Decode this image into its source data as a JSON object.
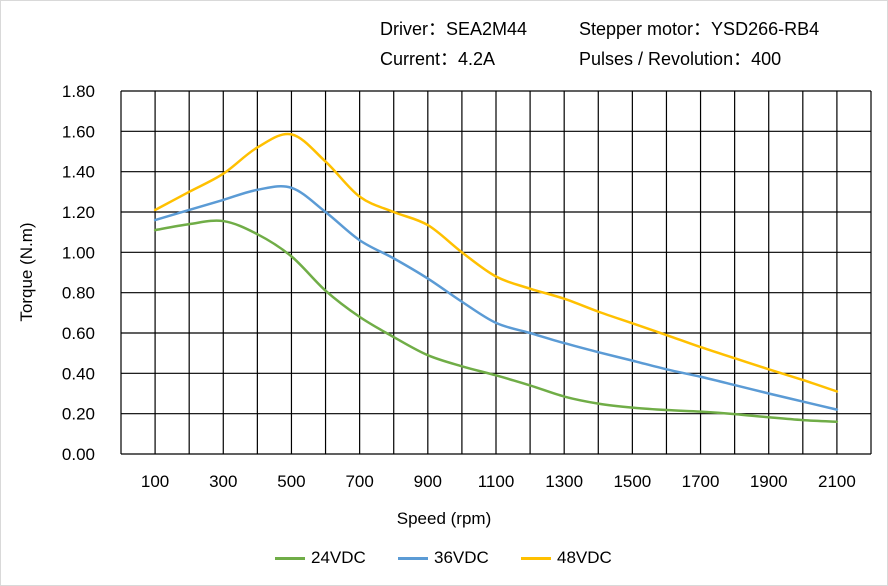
{
  "header": {
    "driver": "Driver：SEA2M44",
    "motor": "Stepper motor：YSD266-RB4",
    "current": "Current：4.2A",
    "pulses": "Pulses / Revolution：400"
  },
  "chart_data": {
    "type": "line",
    "title": "",
    "xlabel": "Speed (rpm)",
    "ylabel": "Torque (N.m)",
    "xlim": [
      0,
      2200
    ],
    "ylim": [
      0,
      1.8
    ],
    "grid": true,
    "smooth": true,
    "legend_position": "bottom",
    "x_ticks": [
      "100",
      "300",
      "500",
      "700",
      "900",
      "1100",
      "1300",
      "1500",
      "1700",
      "1900",
      "2100"
    ],
    "y_ticks": [
      "0.00",
      "0.20",
      "0.40",
      "0.60",
      "0.80",
      "1.00",
      "1.20",
      "1.40",
      "1.60",
      "1.80"
    ],
    "x": [
      100,
      200,
      300,
      400,
      500,
      600,
      700,
      800,
      900,
      1000,
      1100,
      1200,
      1300,
      1400,
      1500,
      1600,
      1700,
      1800,
      1900,
      2000,
      2100
    ],
    "series": [
      {
        "name": "24VDC",
        "color": "#70AD47",
        "values": [
          1.11,
          1.14,
          1.155,
          1.09,
          0.98,
          0.81,
          0.68,
          0.58,
          0.49,
          0.435,
          0.39,
          0.34,
          0.285,
          0.25,
          0.23,
          0.218,
          0.21,
          0.198,
          0.182,
          0.168,
          0.16
        ]
      },
      {
        "name": "36VDC",
        "color": "#5B9BD5",
        "values": [
          1.16,
          1.21,
          1.26,
          1.31,
          1.32,
          1.2,
          1.06,
          0.97,
          0.87,
          0.755,
          0.65,
          0.6,
          0.55,
          0.505,
          0.463,
          0.42,
          0.383,
          0.342,
          0.3,
          0.26,
          0.22
        ]
      },
      {
        "name": "48VDC",
        "color": "#FFC000",
        "values": [
          1.21,
          1.3,
          1.39,
          1.52,
          1.585,
          1.45,
          1.276,
          1.2,
          1.135,
          1.0,
          0.88,
          0.82,
          0.77,
          0.706,
          0.648,
          0.59,
          0.53,
          0.475,
          0.42,
          0.367,
          0.31
        ]
      }
    ]
  }
}
